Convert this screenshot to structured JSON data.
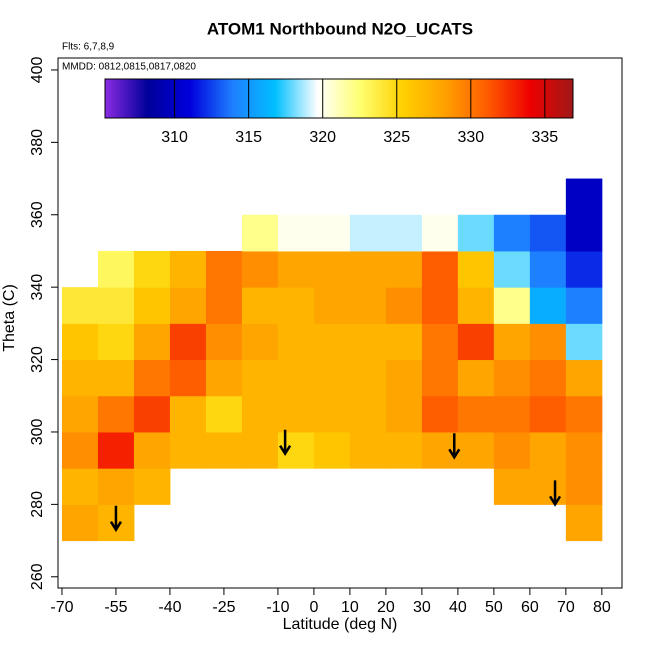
{
  "chart_data": {
    "type": "heatmap",
    "title": "ATOM1 Northbound N2O_UCATS",
    "annotations": [
      "Flts: 6,7,8,9",
      "MMDD: 0812,0815,0817,0820"
    ],
    "x_label": "Latitude (deg N)",
    "y_label": "Theta (C)",
    "xlim": [
      -71.1,
      85.6
    ],
    "ylim": [
      256.9,
      403.3
    ],
    "xticks": [
      -70,
      -55,
      -40,
      -25,
      -10,
      0,
      10,
      20,
      30,
      40,
      50,
      60,
      70,
      80
    ],
    "yticks": [
      260,
      280,
      300,
      320,
      340,
      360,
      380,
      400
    ],
    "x_edges": [
      -70,
      -60,
      -50,
      -40,
      -30,
      -20,
      -10,
      0,
      10,
      20,
      30,
      40,
      50,
      60,
      70,
      80
    ],
    "y_edges": [
      270,
      280,
      290,
      300,
      310,
      320,
      330,
      340,
      350,
      360,
      370
    ],
    "z": [
      [
        328,
        327,
        null,
        null,
        null,
        null,
        null,
        null,
        null,
        null,
        null,
        null,
        null,
        null,
        328
      ],
      [
        327,
        328,
        327,
        null,
        null,
        null,
        null,
        null,
        null,
        null,
        null,
        null,
        328,
        328,
        329
      ],
      [
        329,
        333,
        328,
        327,
        327,
        327,
        325,
        326,
        327,
        327,
        328,
        328,
        329,
        328,
        329
      ],
      [
        328,
        330,
        332,
        327,
        325,
        327,
        327,
        327,
        327,
        328,
        331,
        330,
        330,
        331,
        330
      ],
      [
        327,
        327,
        330,
        331,
        328,
        327,
        327,
        327,
        327,
        328,
        330,
        328,
        329,
        330,
        328
      ],
      [
        326,
        325,
        328,
        332,
        329,
        328,
        327,
        327,
        327,
        327,
        330,
        332,
        328,
        329,
        318
      ],
      [
        324,
        324,
        326,
        328,
        330,
        327,
        327,
        328,
        328,
        329,
        331,
        327,
        322,
        316,
        314
      ],
      [
        null,
        323,
        325,
        327,
        330,
        329,
        328,
        328,
        328,
        328,
        331,
        326,
        318,
        314,
        312
      ],
      [
        null,
        null,
        null,
        null,
        null,
        322,
        320,
        320,
        319,
        319,
        320,
        318,
        314,
        313,
        310
      ],
      [
        null,
        null,
        null,
        null,
        null,
        null,
        null,
        null,
        null,
        null,
        null,
        null,
        null,
        null,
        310
      ]
    ],
    "clim": [
      305.3,
      336.9
    ],
    "cticks": [
      310,
      315,
      320,
      325,
      330,
      335
    ],
    "colormap": [
      "#8a2be2",
      "#00009a",
      "#0000dd",
      "#1e7fff",
      "#00bfff",
      "#ffffff",
      "#ffff70",
      "#ffd000",
      "#ffa000",
      "#ff5a00",
      "#ee0000",
      "#a01818"
    ],
    "arrows": {
      "x": [
        -55,
        -8,
        39,
        67
      ],
      "y": [
        273,
        294,
        293,
        280
      ]
    }
  }
}
